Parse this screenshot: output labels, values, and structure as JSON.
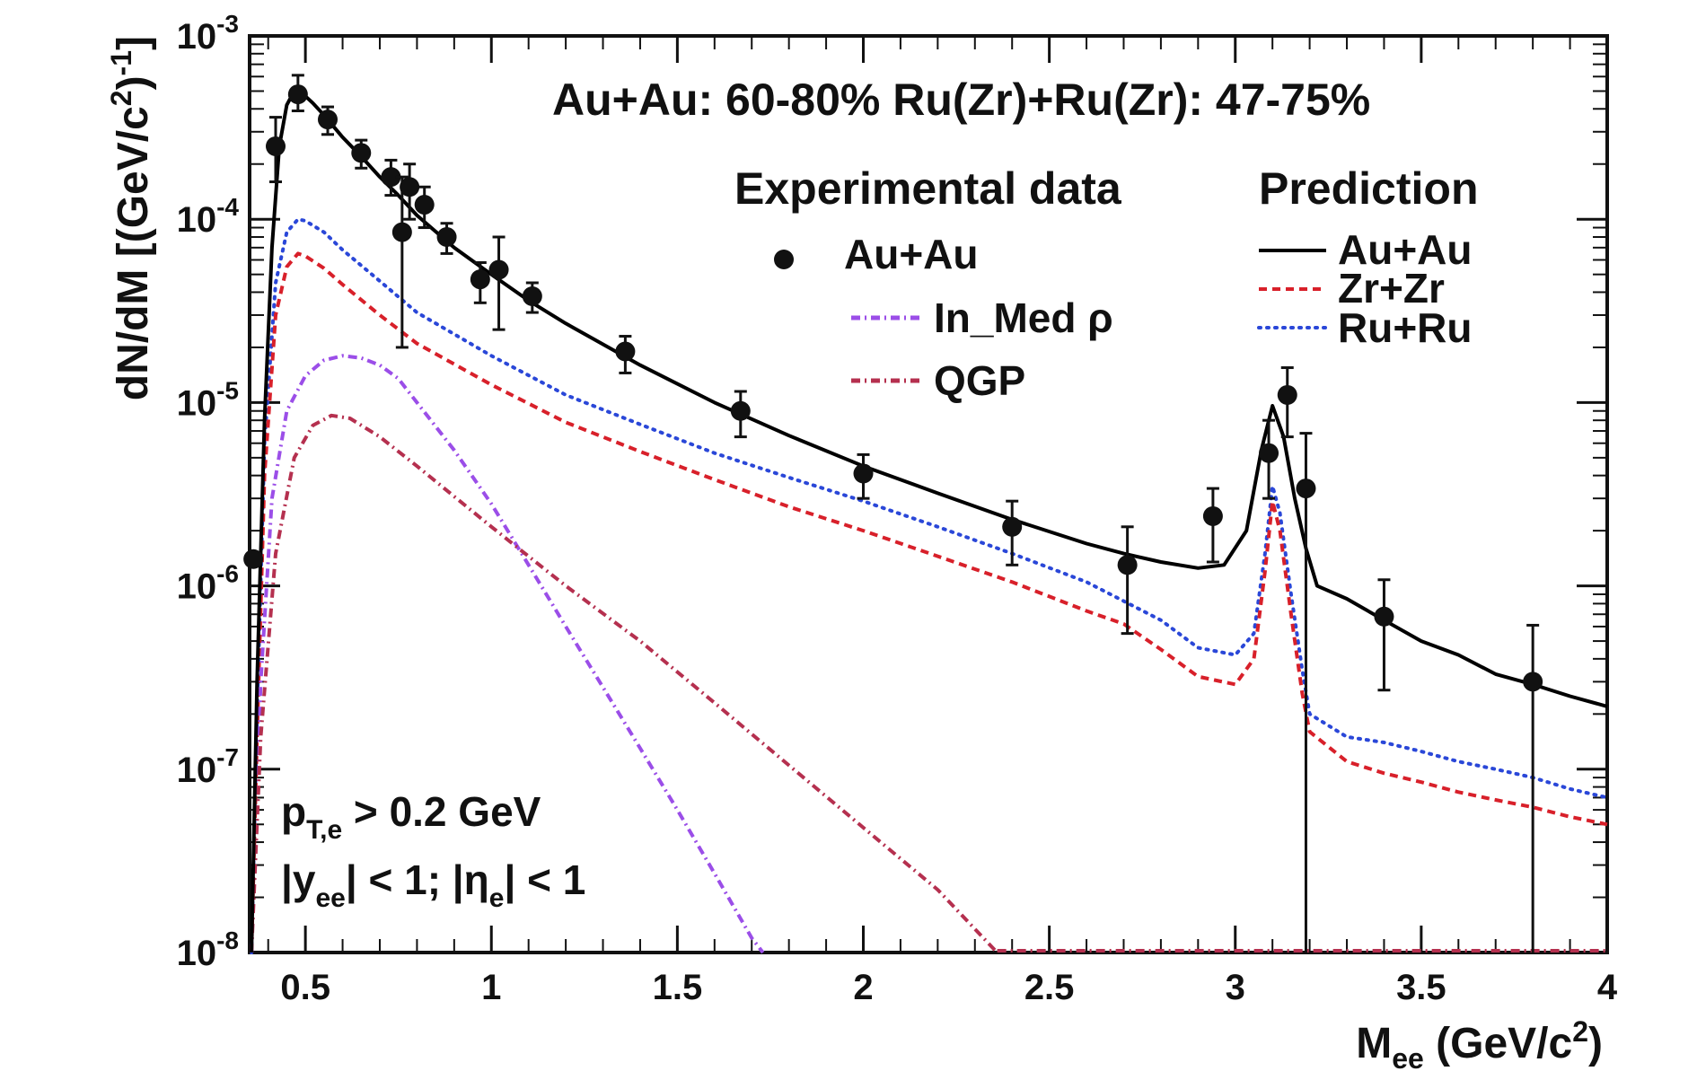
{
  "chart_data": {
    "type": "line",
    "title": "Au+Au: 60-80% Ru(Zr)+Ru(Zr): 47-75%",
    "xlabel": {
      "main": "M",
      "sub": "ee",
      "rest": " (GeV/c",
      "sup": "2",
      "close": ")"
    },
    "ylabel": {
      "a": "dN/dM [(GeV/c",
      "sup1": "2",
      "b": ")",
      "sup2": "-1",
      "c": "]"
    },
    "xlim": [
      0.35,
      4.0
    ],
    "ylim": [
      1e-08,
      0.001
    ],
    "yscale": "log",
    "xticks": [
      {
        "v": 0.5,
        "label": "0.5"
      },
      {
        "v": 1,
        "label": "1"
      },
      {
        "v": 1.5,
        "label": "1.5"
      },
      {
        "v": 2,
        "label": "2"
      },
      {
        "v": 2.5,
        "label": "2.5"
      },
      {
        "v": 3,
        "label": "3"
      },
      {
        "v": 3.5,
        "label": "3.5"
      },
      {
        "v": 4,
        "label": "4"
      }
    ],
    "yticks": [
      {
        "exp": -8,
        "base": "10",
        "sup": "-8"
      },
      {
        "exp": -7,
        "base": "10",
        "sup": "-7"
      },
      {
        "exp": -6,
        "base": "10",
        "sup": "-6"
      },
      {
        "exp": -5,
        "base": "10",
        "sup": "-5"
      },
      {
        "exp": -4,
        "base": "10",
        "sup": "-4"
      },
      {
        "exp": -3,
        "base": "10",
        "sup": "-3"
      }
    ],
    "legend": {
      "exp_header": "Experimental data",
      "pred_header": "Prediction",
      "exp_items": [
        {
          "label": "Au+Au",
          "style": "marker"
        },
        {
          "label": "In_Med ρ",
          "style": "dash-dot",
          "color": "#9b4ee8"
        },
        {
          "label": "QGP",
          "style": "dash-dot",
          "color": "#b5304f"
        }
      ],
      "pred_items": [
        {
          "label": "Au+Au",
          "style": "solid",
          "color": "#000000"
        },
        {
          "label": "Zr+Zr",
          "style": "dashed",
          "color": "#d8202a"
        },
        {
          "label": "Ru+Ru",
          "style": "dotted",
          "color": "#2a47d8"
        }
      ]
    },
    "annotation": {
      "line1_p": "p",
      "line1_sub": "T,e",
      "line1_rest": " > 0.2 GeV",
      "line2_a": "|y",
      "line2_sub1": "ee",
      "line2_b": "| < 1; |η",
      "line2_sub2": "e",
      "line2_c": "| < 1"
    },
    "series": [
      {
        "name": "Au+Au prediction",
        "color": "#000000",
        "dash": "",
        "points": [
          [
            0.355,
            1e-08
          ],
          [
            0.37,
            3e-07
          ],
          [
            0.39,
            8e-06
          ],
          [
            0.41,
            7e-05
          ],
          [
            0.43,
            0.00025
          ],
          [
            0.45,
            0.00042
          ],
          [
            0.47,
            0.0005
          ],
          [
            0.49,
            0.00049
          ],
          [
            0.52,
            0.00043
          ],
          [
            0.55,
            0.00037
          ],
          [
            0.6,
            0.00028
          ],
          [
            0.65,
            0.00022
          ],
          [
            0.7,
            0.00017
          ],
          [
            0.75,
            0.000135
          ],
          [
            0.8,
            0.000105
          ],
          [
            0.9,
            7e-05
          ],
          [
            1.0,
            5e-05
          ],
          [
            1.1,
            3.6e-05
          ],
          [
            1.2,
            2.7e-05
          ],
          [
            1.4,
            1.6e-05
          ],
          [
            1.6,
            1e-05
          ],
          [
            1.8,
            6.6e-06
          ],
          [
            2.0,
            4.5e-06
          ],
          [
            2.2,
            3.2e-06
          ],
          [
            2.4,
            2.3e-06
          ],
          [
            2.6,
            1.7e-06
          ],
          [
            2.7,
            1.5e-06
          ],
          [
            2.8,
            1.35e-06
          ],
          [
            2.9,
            1.25e-06
          ],
          [
            2.97,
            1.3e-06
          ],
          [
            3.03,
            2e-06
          ],
          [
            3.07,
            5.5e-06
          ],
          [
            3.1,
            9.6e-06
          ],
          [
            3.13,
            6.5e-06
          ],
          [
            3.16,
            3e-06
          ],
          [
            3.19,
            1.6e-06
          ],
          [
            3.22,
            1e-06
          ],
          [
            3.3,
            8.5e-07
          ],
          [
            3.4,
            6.5e-07
          ],
          [
            3.5,
            5e-07
          ],
          [
            3.6,
            4.2e-07
          ],
          [
            3.7,
            3.3e-07
          ],
          [
            3.8,
            2.9e-07
          ],
          [
            3.9,
            2.5e-07
          ],
          [
            4.0,
            2.2e-07
          ]
        ]
      },
      {
        "name": "Ru+Ru prediction",
        "color": "#2a47d8",
        "dash": "2,7",
        "points": [
          [
            0.355,
            1e-08
          ],
          [
            0.37,
            2e-07
          ],
          [
            0.39,
            6e-06
          ],
          [
            0.42,
            4.5e-05
          ],
          [
            0.45,
            8.5e-05
          ],
          [
            0.48,
            0.0001
          ],
          [
            0.5,
            9.8e-05
          ],
          [
            0.55,
            8.5e-05
          ],
          [
            0.6,
            6.8e-05
          ],
          [
            0.7,
            4.6e-05
          ],
          [
            0.8,
            3.1e-05
          ],
          [
            1.0,
            1.8e-05
          ],
          [
            1.2,
            1.1e-05
          ],
          [
            1.4,
            7.6e-06
          ],
          [
            1.6,
            5.3e-06
          ],
          [
            1.8,
            3.9e-06
          ],
          [
            2.0,
            2.9e-06
          ],
          [
            2.2,
            2.1e-06
          ],
          [
            2.4,
            1.5e-06
          ],
          [
            2.6,
            1.05e-06
          ],
          [
            2.8,
            6.5e-07
          ],
          [
            2.9,
            4.6e-07
          ],
          [
            3.0,
            4.2e-07
          ],
          [
            3.05,
            5.5e-07
          ],
          [
            3.08,
            1.5e-06
          ],
          [
            3.1,
            3.5e-06
          ],
          [
            3.12,
            2.5e-06
          ],
          [
            3.15,
            9e-07
          ],
          [
            3.18,
            3.5e-07
          ],
          [
            3.2,
            2e-07
          ],
          [
            3.3,
            1.5e-07
          ],
          [
            3.4,
            1.4e-07
          ],
          [
            3.5,
            1.25e-07
          ],
          [
            3.6,
            1.1e-07
          ],
          [
            3.7,
            1e-07
          ],
          [
            3.8,
            9e-08
          ],
          [
            3.9,
            7.8e-08
          ],
          [
            4.0,
            7e-08
          ]
        ]
      },
      {
        "name": "Zr+Zr prediction",
        "color": "#d8202a",
        "dash": "9,6",
        "points": [
          [
            0.355,
            1e-08
          ],
          [
            0.37,
            1.5e-07
          ],
          [
            0.39,
            4e-06
          ],
          [
            0.42,
            3e-05
          ],
          [
            0.45,
            5.5e-05
          ],
          [
            0.48,
            6.5e-05
          ],
          [
            0.5,
            6.3e-05
          ],
          [
            0.55,
            5.4e-05
          ],
          [
            0.6,
            4.4e-05
          ],
          [
            0.7,
            3e-05
          ],
          [
            0.8,
            2.1e-05
          ],
          [
            1.0,
            1.25e-05
          ],
          [
            1.2,
            7.8e-06
          ],
          [
            1.4,
            5.4e-06
          ],
          [
            1.6,
            3.8e-06
          ],
          [
            1.8,
            2.7e-06
          ],
          [
            2.0,
            2e-06
          ],
          [
            2.2,
            1.45e-06
          ],
          [
            2.4,
            1.05e-06
          ],
          [
            2.6,
            7.3e-07
          ],
          [
            2.7,
            6.2e-07
          ],
          [
            2.8,
            4.5e-07
          ],
          [
            2.9,
            3.2e-07
          ],
          [
            3.0,
            2.9e-07
          ],
          [
            3.05,
            4e-07
          ],
          [
            3.08,
            1.2e-06
          ],
          [
            3.1,
            2.9e-06
          ],
          [
            3.12,
            2e-06
          ],
          [
            3.15,
            7e-07
          ],
          [
            3.18,
            2.6e-07
          ],
          [
            3.2,
            1.6e-07
          ],
          [
            3.3,
            1.1e-07
          ],
          [
            3.4,
            9.5e-08
          ],
          [
            3.5,
            8.5e-08
          ],
          [
            3.6,
            7.5e-08
          ],
          [
            3.7,
            6.8e-08
          ],
          [
            3.8,
            6.2e-08
          ],
          [
            3.9,
            5.5e-08
          ],
          [
            4.0,
            5e-08
          ]
        ]
      },
      {
        "name": "In_Med ρ",
        "color": "#9b4ee8",
        "dash": "10,5,2,5",
        "points": [
          [
            0.355,
            1e-08
          ],
          [
            0.38,
            3e-07
          ],
          [
            0.41,
            3e-06
          ],
          [
            0.45,
            9e-06
          ],
          [
            0.5,
            1.4e-05
          ],
          [
            0.55,
            1.7e-05
          ],
          [
            0.6,
            1.8e-05
          ],
          [
            0.65,
            1.75e-05
          ],
          [
            0.7,
            1.6e-05
          ],
          [
            0.75,
            1.35e-05
          ],
          [
            0.8,
            1e-05
          ],
          [
            0.9,
            5.5e-06
          ],
          [
            1.0,
            2.8e-06
          ],
          [
            1.1,
            1.3e-06
          ],
          [
            1.2,
            6e-07
          ],
          [
            1.3,
            2.8e-07
          ],
          [
            1.4,
            1.3e-07
          ],
          [
            1.5,
            6e-08
          ],
          [
            1.6,
            2.7e-08
          ],
          [
            1.7,
            1.2e-08
          ],
          [
            1.73,
            1e-08
          ]
        ]
      },
      {
        "name": "QGP",
        "color": "#b5304f",
        "dash": "10,5,2,5",
        "points": [
          [
            0.355,
            1e-08
          ],
          [
            0.38,
            1.5e-07
          ],
          [
            0.42,
            1.5e-06
          ],
          [
            0.47,
            5e-06
          ],
          [
            0.52,
            7.5e-06
          ],
          [
            0.57,
            8.5e-06
          ],
          [
            0.62,
            8.2e-06
          ],
          [
            0.7,
            6.5e-06
          ],
          [
            0.8,
            4.5e-06
          ],
          [
            1.0,
            2.1e-06
          ],
          [
            1.2,
            1e-06
          ],
          [
            1.4,
            5e-07
          ],
          [
            1.6,
            2.3e-07
          ],
          [
            1.8,
            1.05e-07
          ],
          [
            2.0,
            4.8e-08
          ],
          [
            2.2,
            2.2e-08
          ],
          [
            2.36,
            1e-08
          ]
        ]
      }
    ],
    "floor_line": {
      "from": 2.36,
      "to": 4.0,
      "value": 1e-08
    },
    "experimental_points": [
      {
        "x": 0.36,
        "y": 1.4e-06,
        "lo": 1.4e-06,
        "hi": 1.4e-06
      },
      {
        "x": 0.42,
        "y": 0.00025,
        "lo": 0.00016,
        "hi": 0.00036
      },
      {
        "x": 0.48,
        "y": 0.00048,
        "lo": 0.00039,
        "hi": 0.00061
      },
      {
        "x": 0.56,
        "y": 0.00035,
        "lo": 0.00029,
        "hi": 0.00041
      },
      {
        "x": 0.65,
        "y": 0.00023,
        "lo": 0.00019,
        "hi": 0.00027
      },
      {
        "x": 0.73,
        "y": 0.00017,
        "lo": 0.000135,
        "hi": 0.00021
      },
      {
        "x": 0.76,
        "y": 8.5e-05,
        "lo": 2e-05,
        "hi": 0.00017
      },
      {
        "x": 0.78,
        "y": 0.00015,
        "lo": 0.0001,
        "hi": 0.0002
      },
      {
        "x": 0.82,
        "y": 0.00012,
        "lo": 9e-05,
        "hi": 0.00015
      },
      {
        "x": 0.88,
        "y": 8e-05,
        "lo": 6.5e-05,
        "hi": 9.5e-05
      },
      {
        "x": 0.97,
        "y": 4.7e-05,
        "lo": 3.5e-05,
        "hi": 5.8e-05
      },
      {
        "x": 1.02,
        "y": 5.3e-05,
        "lo": 2.5e-05,
        "hi": 8e-05
      },
      {
        "x": 1.11,
        "y": 3.8e-05,
        "lo": 3.1e-05,
        "hi": 4.5e-05
      },
      {
        "x": 1.36,
        "y": 1.9e-05,
        "lo": 1.45e-05,
        "hi": 2.3e-05
      },
      {
        "x": 1.67,
        "y": 9e-06,
        "lo": 6.5e-06,
        "hi": 1.15e-05
      },
      {
        "x": 2.0,
        "y": 4.1e-06,
        "lo": 3e-06,
        "hi": 5.2e-06
      },
      {
        "x": 2.4,
        "y": 2.1e-06,
        "lo": 1.3e-06,
        "hi": 2.9e-06
      },
      {
        "x": 2.71,
        "y": 1.3e-06,
        "lo": 5.5e-07,
        "hi": 2.1e-06
      },
      {
        "x": 2.94,
        "y": 2.4e-06,
        "lo": 1.35e-06,
        "hi": 3.4e-06
      },
      {
        "x": 3.09,
        "y": 5.3e-06,
        "lo": 3e-06,
        "hi": 8e-06
      },
      {
        "x": 3.14,
        "y": 1.1e-05,
        "lo": 6.5e-06,
        "hi": 1.55e-05
      },
      {
        "x": 3.19,
        "y": 3.4e-06,
        "lo": 1e-08,
        "hi": 6.8e-06
      },
      {
        "x": 3.4,
        "y": 6.8e-07,
        "lo": 2.7e-07,
        "hi": 1.08e-06
      },
      {
        "x": 3.8,
        "y": 3e-07,
        "lo": 1e-08,
        "hi": 6.1e-07
      }
    ]
  }
}
